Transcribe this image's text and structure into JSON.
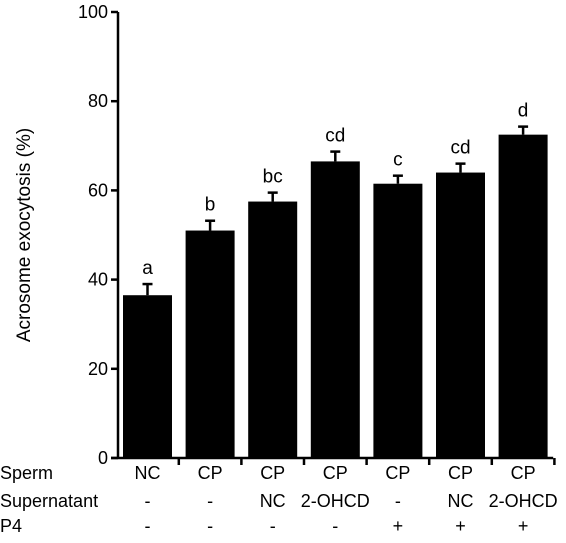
{
  "chart_data": {
    "type": "bar",
    "ylabel": "Acrosome exocytosis (%)",
    "ylim": [
      0,
      100
    ],
    "yticks": [
      0,
      20,
      40,
      60,
      80,
      100
    ],
    "bar_color": "#000000",
    "categories": [
      {
        "sperm": "NC",
        "supernatant": "-",
        "p4": "-"
      },
      {
        "sperm": "CP",
        "supernatant": "-",
        "p4": "-"
      },
      {
        "sperm": "CP",
        "supernatant": "NC",
        "p4": "-"
      },
      {
        "sperm": "CP",
        "supernatant": "2-OHCD",
        "p4": "-"
      },
      {
        "sperm": "CP",
        "supernatant": "-",
        "p4": "+"
      },
      {
        "sperm": "CP",
        "supernatant": "NC",
        "p4": "+"
      },
      {
        "sperm": "CP",
        "supernatant": "2-OHCD",
        "p4": "+"
      }
    ],
    "series": [
      {
        "values": [
          36.5,
          51,
          57.5,
          66.5,
          61.5,
          64,
          72.5
        ],
        "errors": [
          2.5,
          2.2,
          2.0,
          2.2,
          1.8,
          2.0,
          1.8
        ],
        "significance_letters": [
          "a",
          "b",
          "bc",
          "cd",
          "c",
          "cd",
          "d"
        ]
      }
    ],
    "row_labels": {
      "sperm": "Sperm",
      "supernatant": "Supernatant",
      "p4": "P4"
    },
    "grid": false,
    "legend": false
  }
}
